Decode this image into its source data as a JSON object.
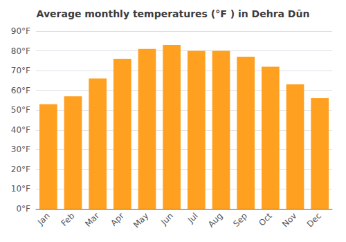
{
  "chart_data": {
    "type": "bar",
    "title": "Average monthly temperatures (°F ) in Dehra Dūn",
    "categories": [
      "Jan",
      "Feb",
      "Mar",
      "Apr",
      "May",
      "Jun",
      "Jul",
      "Aug",
      "Sep",
      "Oct",
      "Nov",
      "Dec"
    ],
    "values": [
      53,
      57,
      66,
      76,
      81,
      83,
      80,
      80,
      77,
      72,
      63,
      56
    ],
    "color": "#FFA020",
    "ylim": [
      0,
      90
    ],
    "yticks": [
      {
        "value": 0,
        "label": "0°F"
      },
      {
        "value": 10,
        "label": "10°F"
      },
      {
        "value": 20,
        "label": "20°F"
      },
      {
        "value": 30,
        "label": "30°F"
      },
      {
        "value": 40,
        "label": "40°F"
      },
      {
        "value": 50,
        "label": "50°F"
      },
      {
        "value": 60,
        "label": "60°F"
      },
      {
        "value": 70,
        "label": "70°F"
      },
      {
        "value": 80,
        "label": "80°F"
      },
      {
        "value": 90,
        "label": "90°F"
      }
    ],
    "grid": true
  }
}
